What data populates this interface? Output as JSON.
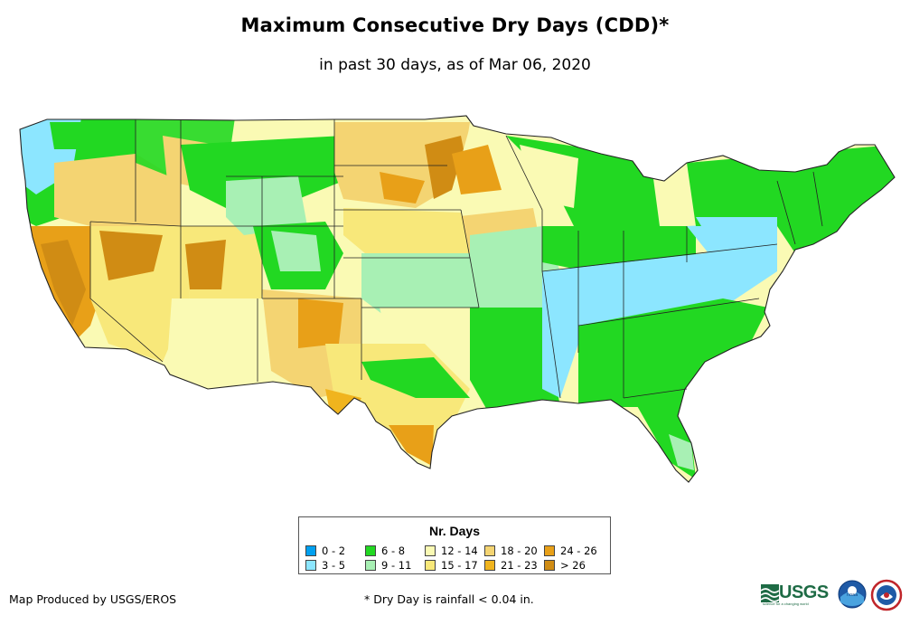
{
  "title": "Maximum Consecutive Dry Days (CDD)*",
  "subtitle": "in past 30 days, as of Mar 06, 2020",
  "legend": {
    "title": "Nr. Days",
    "items": [
      {
        "label": "0 - 2",
        "color": "#00a0f0"
      },
      {
        "label": "3 - 5",
        "color": "#8ce6ff"
      },
      {
        "label": "6 - 8",
        "color": "#22d822"
      },
      {
        "label": "9 - 11",
        "color": "#a8f0b4"
      },
      {
        "label": "12 - 14",
        "color": "#fafab4"
      },
      {
        "label": "15 - 17",
        "color": "#f8e87a"
      },
      {
        "label": "18 - 20",
        "color": "#f4d472"
      },
      {
        "label": "21 - 23",
        "color": "#f0b41e"
      },
      {
        "label": "24 - 26",
        "color": "#e8a018"
      },
      {
        "label": "> 26",
        "color": "#d08c14"
      }
    ]
  },
  "footer": {
    "producer": "Map Produced by USGS/EROS",
    "note": "* Dry Day is rainfall < 0.04 in."
  },
  "logos": {
    "usgs": "USGS",
    "usgs_tagline": "science for a changing world",
    "noaa": "noaa"
  }
}
